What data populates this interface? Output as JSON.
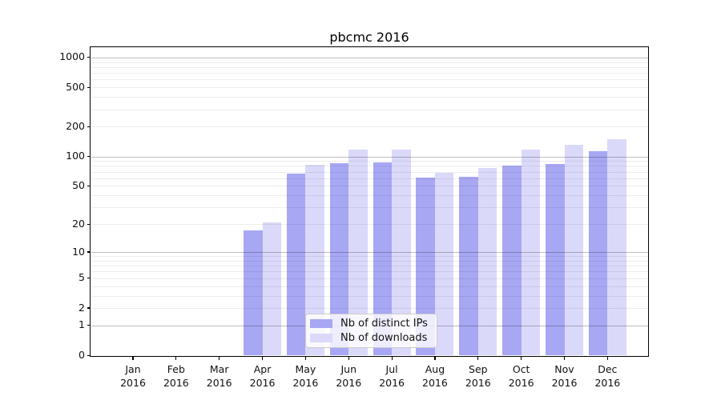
{
  "title": "pbcmc 2016",
  "chart_data": {
    "type": "bar",
    "title": "pbcmc 2016",
    "categories": [
      "Jan 2016",
      "Feb 2016",
      "Mar 2016",
      "Apr 2016",
      "May 2016",
      "Jun 2016",
      "Jul 2016",
      "Aug 2016",
      "Sep 2016",
      "Oct 2016",
      "Nov 2016",
      "Dec 2016"
    ],
    "series": [
      {
        "name": "Nb of distinct IPs",
        "color": "#a7a7f4",
        "values": [
          0,
          0,
          0,
          17,
          67,
          85,
          87,
          61,
          62,
          81,
          84,
          112
        ]
      },
      {
        "name": "Nb of downloads",
        "color": "#dbd9f9",
        "values": [
          0,
          0,
          0,
          21,
          82,
          117,
          118,
          68,
          76,
          117,
          130,
          149
        ]
      }
    ],
    "xlabel": "",
    "ylabel": "",
    "y_scale": "log(value+1)",
    "y_ticks": [
      0,
      1,
      2,
      5,
      10,
      20,
      50,
      100,
      200,
      500,
      1000
    ],
    "ylim": [
      0,
      1276
    ],
    "grid": true,
    "legend_position": "lower center"
  },
  "colors": {
    "bar_distinct_ips": "#a7a7f4",
    "bar_downloads": "#dbd9f9",
    "major_grid": "rgba(0,0,0,0.25)",
    "minor_grid": "rgba(0,0,0,0.07)",
    "axis": "#000000",
    "text": "#111111",
    "legend_border": "#cccccc",
    "legend_background": "rgba(255,255,255,0.8)"
  }
}
